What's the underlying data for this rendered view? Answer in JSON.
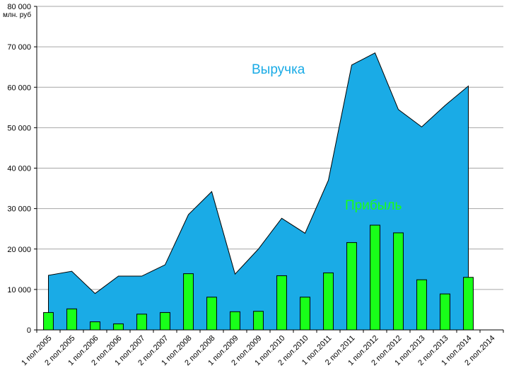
{
  "chart_data": {
    "type": "area+bar",
    "unit_label": "млн. руб",
    "categories": [
      "1 пол.2005",
      "2 пол.2005",
      "1 пол.2006",
      "2 пол.2006",
      "1 пол.2007",
      "2 пол.2007",
      "1 пол.2008",
      "2 пол.2008",
      "1 пол.2009",
      "2 пол.2009",
      "1 пол.2010",
      "2 пол.2010",
      "1 пол.2011",
      "2 пол.2011",
      "1 пол.2012",
      "2 пол.2012",
      "1 пол.2013",
      "2 пол.2013",
      "1 пол.2014",
      "2 пол.2014"
    ],
    "ylim": [
      0,
      80000
    ],
    "yticks": [
      "0",
      "10 000",
      "20 000",
      "30 000",
      "40 000",
      "50 000",
      "60 000",
      "70 000",
      "80 000"
    ],
    "grid": true,
    "series": [
      {
        "name": "Выручка",
        "type": "area",
        "color": "#1aabe6",
        "values": [
          13500,
          14500,
          9000,
          13300,
          13300,
          16100,
          28500,
          34200,
          13800,
          20000,
          27600,
          23900,
          37000,
          65500,
          68500,
          54500,
          50200,
          55500,
          60300,
          null
        ]
      },
      {
        "name": "Прибыль",
        "type": "bar",
        "color": "#19ff19",
        "values": [
          4300,
          5200,
          2000,
          1500,
          3900,
          4300,
          13900,
          8100,
          4500,
          4600,
          13400,
          8100,
          14100,
          21600,
          25900,
          24000,
          12400,
          8900,
          13000,
          null
        ]
      }
    ]
  }
}
